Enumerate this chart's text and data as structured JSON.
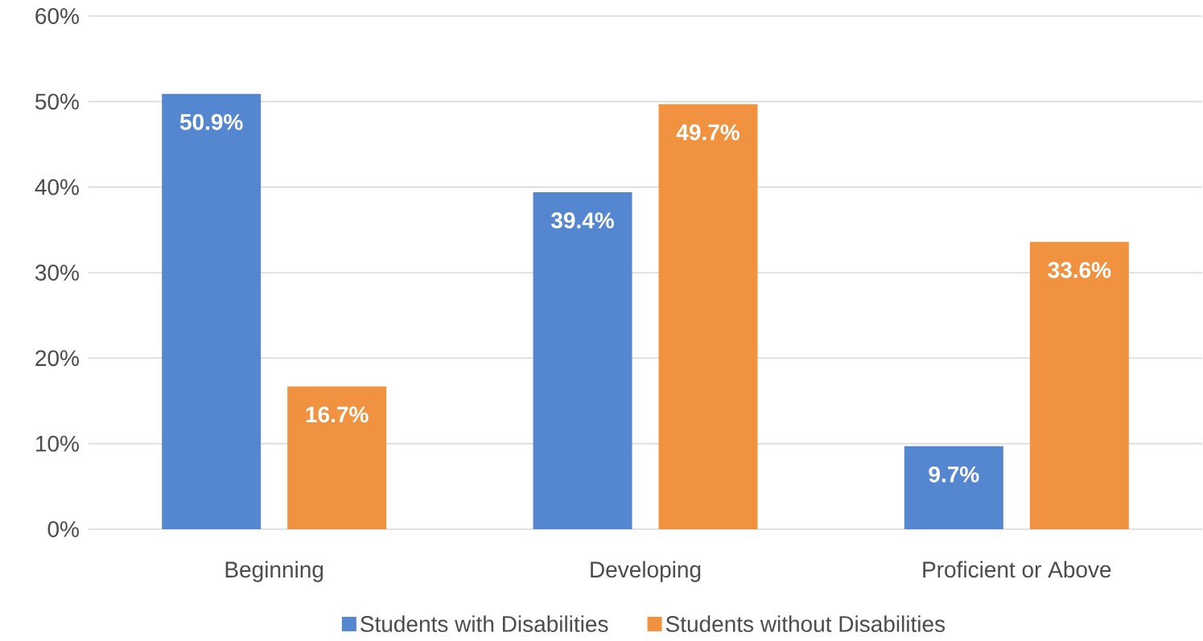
{
  "chart_data": {
    "type": "bar",
    "categories": [
      "Beginning",
      "Developing",
      "Proficient or Above"
    ],
    "series": [
      {
        "name": "Students with Disabilities",
        "color": "#5587d1",
        "values": [
          50.9,
          39.4,
          9.7
        ],
        "value_labels": [
          "50.9%",
          "39.4%",
          "9.7%"
        ]
      },
      {
        "name": "Students without Disabilities",
        "color": "#f19241",
        "values": [
          16.7,
          49.7,
          33.6
        ],
        "value_labels": [
          "16.7%",
          "49.7%",
          "33.6%"
        ]
      }
    ],
    "ylim": [
      0,
      60
    ],
    "yticks": [
      {
        "value": 0,
        "label": "0%"
      },
      {
        "value": 10,
        "label": "10%"
      },
      {
        "value": 20,
        "label": "20%"
      },
      {
        "value": 30,
        "label": "30%"
      },
      {
        "value": 40,
        "label": "40%"
      },
      {
        "value": 50,
        "label": "50%"
      },
      {
        "value": 60,
        "label": "60%"
      }
    ],
    "grid": "y",
    "legend": "bottom"
  }
}
